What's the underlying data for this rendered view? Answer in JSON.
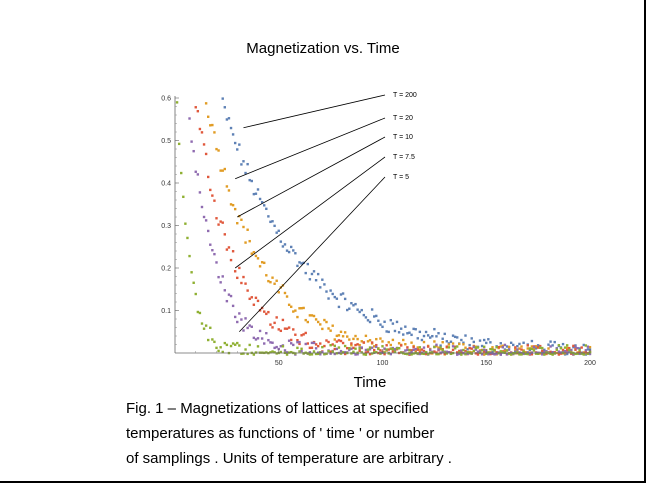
{
  "chart_data": {
    "type": "scatter",
    "title": "Magnetization vs. Time",
    "xlabel": "Time",
    "ylabel": "",
    "xlim": [
      0,
      200
    ],
    "ylim": [
      0,
      0.6
    ],
    "xticks": [
      "50",
      "100",
      "150",
      "200"
    ],
    "yticks": [
      "0.1",
      "0.2",
      "0.3",
      "0.4",
      "0.5",
      "0.6"
    ],
    "series": [
      {
        "name": "T = 200",
        "color": "#5e81b5",
        "x0": 22,
        "decay": 37,
        "xmax": 200,
        "amplitude": 0.6
      },
      {
        "name": "T = 20",
        "color": "#e19c24",
        "x0": 15,
        "decay": 25,
        "xmax": 200,
        "amplitude": 0.6
      },
      {
        "name": "T = 10",
        "color": "#e0583c",
        "x0": 10,
        "decay": 18,
        "xmax": 200,
        "amplitude": 0.6
      },
      {
        "name": "T = 7.5",
        "color": "#8f6bb0",
        "x0": 6,
        "decay": 13,
        "xmax": 200,
        "amplitude": 0.6
      },
      {
        "name": "T = 5",
        "color": "#8fb032",
        "x0": 1,
        "decay": 6,
        "xmax": 200,
        "amplitude": 0.6
      }
    ],
    "annotations": [
      {
        "label": "T = 200",
        "x": 33,
        "y": 0.53
      },
      {
        "label": "T = 20",
        "x": 29,
        "y": 0.41
      },
      {
        "label": "T = 10",
        "x": 30,
        "y": 0.32
      },
      {
        "label": "T = 7.5",
        "x": 29,
        "y": 0.2
      },
      {
        "label": "T = 5",
        "x": 31,
        "y": 0.05
      }
    ]
  },
  "caption": {
    "line1": "Fig. 1  – Magnetizations   of lattices  at specified",
    "line2": "temperatures    as functions  of ' time ' or number",
    "line3": "of samplings   . Units of temperature    are arbitrary ."
  }
}
